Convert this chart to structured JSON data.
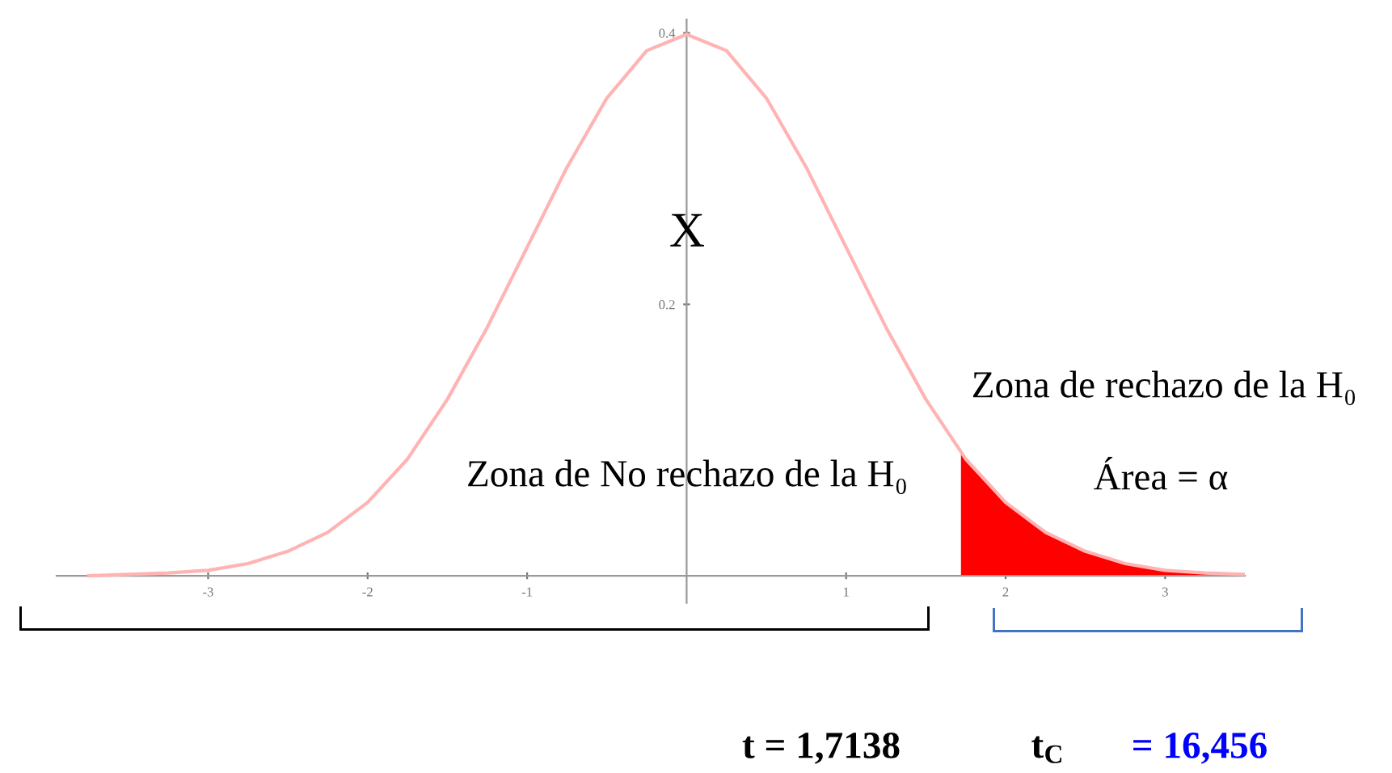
{
  "chart_data": {
    "type": "line",
    "x": [
      -3.75,
      -3.5,
      -3.25,
      -3,
      -2.75,
      -2.5,
      -2.25,
      -2,
      -1.75,
      -1.5,
      -1.25,
      -1,
      -0.75,
      -0.5,
      -0.25,
      0,
      0.25,
      0.5,
      0.75,
      1,
      1.25,
      1.5,
      1.75,
      2,
      2.25,
      2.5,
      2.75,
      3,
      3.25,
      3.5
    ],
    "series": [
      {
        "color": "#ffb3b3",
        "values": [
          0,
          0.001,
          0.002,
          0.004,
          0.009,
          0.018,
          0.032,
          0.054,
          0.086,
          0.13,
          0.183,
          0.242,
          0.301,
          0.352,
          0.387,
          0.399,
          0.387,
          0.352,
          0.301,
          0.242,
          0.183,
          0.13,
          0.086,
          0.054,
          0.032,
          0.018,
          0.009,
          0.004,
          0.002,
          0.001
        ]
      },
      {
        "type": "area",
        "color": "#ff0000",
        "x": [
          1.72,
          1.75,
          2,
          2.25,
          2.5,
          2.75,
          3,
          3.25,
          3.5
        ],
        "values": [
          0.091,
          0.086,
          0.054,
          0.032,
          0.018,
          0.009,
          0.004,
          0.002,
          0.001
        ]
      }
    ],
    "xlim": [
      -3.95,
      3.5
    ],
    "ylim": [
      -0.02,
      0.41
    ],
    "xticks": [
      -3,
      -2,
      -1,
      1,
      2,
      3
    ],
    "yticks": [
      0.2,
      0.4
    ],
    "grid": false,
    "marker": "none",
    "line_style": "solid",
    "annotations": [
      "X",
      "Zona de No rechazo de la H₀",
      "Zona de rechazo de la H₀",
      "Área = α",
      "t = 1,7138",
      "t$_{C}$",
      "= 16,456"
    ]
  }
}
